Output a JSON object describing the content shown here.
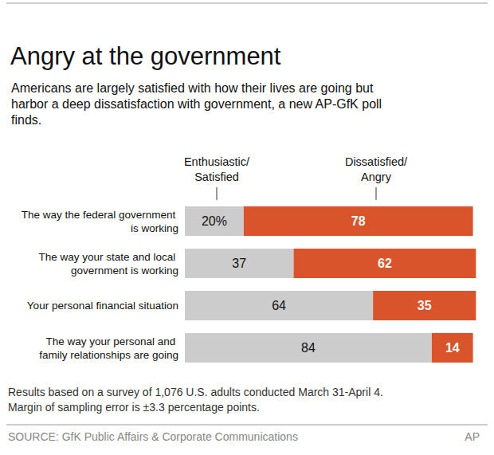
{
  "chart_data": {
    "type": "bar",
    "orientation": "horizontal",
    "stacked": true,
    "data_labels": true,
    "tick_labels": false,
    "grid": false,
    "title": "Angry at the government",
    "subtitle": "Americans are largely satisfied with how their lives are going but harbor a deep dissatisfaction with government, a new AP-GfK poll finds.",
    "categories": [
      "The way the federal government is working",
      "The way your state and local government is working",
      "Your personal financial situation",
      "The way your personal and family relationships are going"
    ],
    "series": [
      {
        "name": "Enthusiastic/ Satisfied",
        "color": "#cccccc",
        "values": [
          20,
          37,
          64,
          84
        ],
        "value_labels": [
          "20%",
          "37",
          "64",
          "84"
        ]
      },
      {
        "name": "Dissatisfied/ Angry",
        "color": "#d9532b",
        "values": [
          78,
          62,
          35,
          14
        ]
      }
    ],
    "xlim": [
      0,
      100
    ],
    "note": "Results based on a survey of 1,076 U.S. adults conducted March 31-April 4. Margin of sampling error is ±3.3 percentage points.",
    "source": "SOURCE: GfK Public Affairs & Corporate Communications",
    "credit": "AP"
  }
}
